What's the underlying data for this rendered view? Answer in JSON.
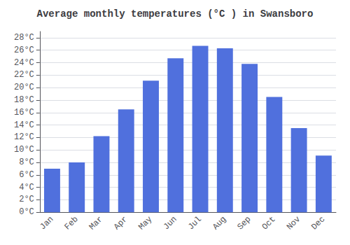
{
  "chart_data": {
    "type": "bar",
    "title": "Average monthly temperatures (°C ) in Swansboro",
    "categories": [
      "Jan",
      "Feb",
      "Mar",
      "Apr",
      "May",
      "Jun",
      "Jul",
      "Aug",
      "Sep",
      "Oct",
      "Nov",
      "Dec"
    ],
    "values": [
      7,
      8,
      12.2,
      16.5,
      21.1,
      24.7,
      26.7,
      26.3,
      23.8,
      18.5,
      13.5,
      9.1
    ],
    "ylim": [
      0,
      29
    ],
    "yticks": [
      {
        "value": 0,
        "label": "0°C"
      },
      {
        "value": 2,
        "label": "2°C"
      },
      {
        "value": 4,
        "label": "4°C"
      },
      {
        "value": 6,
        "label": "6°C"
      },
      {
        "value": 8,
        "label": "8°C"
      },
      {
        "value": 10,
        "label": "10°C"
      },
      {
        "value": 12,
        "label": "12°C"
      },
      {
        "value": 14,
        "label": "14°C"
      },
      {
        "value": 16,
        "label": "16°C"
      },
      {
        "value": 18,
        "label": "18°C"
      },
      {
        "value": 20,
        "label": "20°C"
      },
      {
        "value": 22,
        "label": "22°C"
      },
      {
        "value": 24,
        "label": "24°C"
      },
      {
        "value": 26,
        "label": "26°C"
      },
      {
        "value": 28,
        "label": "28°C"
      }
    ],
    "grid": true
  }
}
